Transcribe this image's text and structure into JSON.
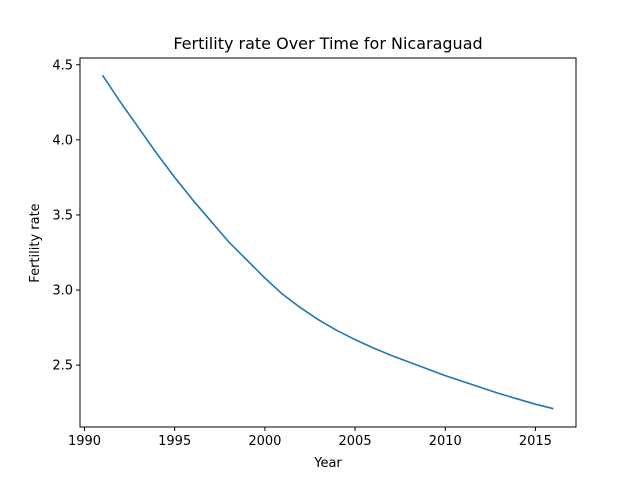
{
  "chart_data": {
    "type": "line",
    "title": "Fertility rate Over Time for Nicaraguad",
    "xlabel": "Year",
    "ylabel": "Fertility rate",
    "xlim": [
      1989.75,
      2017.25
    ],
    "ylim": [
      2.088,
      4.545
    ],
    "xticks": [
      1990,
      1995,
      2000,
      2005,
      2010,
      2015
    ],
    "yticks": [
      2.5,
      3.0,
      3.5,
      4.0,
      4.5
    ],
    "xtick_labels": [
      "1990",
      "1995",
      "2000",
      "2005",
      "2010",
      "2015"
    ],
    "ytick_labels": [
      "2.5",
      "3.0",
      "3.5",
      "4.0",
      "4.5"
    ],
    "grid": false,
    "series": [
      {
        "color": "#1f77b4",
        "x": [
          1991,
          1992,
          1993,
          1994,
          1995,
          1996,
          1997,
          1998,
          1999,
          2000,
          2001,
          2002,
          2003,
          2004,
          2005,
          2006,
          2007,
          2008,
          2009,
          2010,
          2011,
          2012,
          2013,
          2014,
          2015,
          2016
        ],
        "y": [
          4.43,
          4.25,
          4.08,
          3.91,
          3.75,
          3.6,
          3.46,
          3.32,
          3.2,
          3.08,
          2.97,
          2.88,
          2.8,
          2.73,
          2.67,
          2.615,
          2.565,
          2.52,
          2.475,
          2.43,
          2.39,
          2.35,
          2.31,
          2.275,
          2.24,
          2.21
        ]
      }
    ]
  }
}
